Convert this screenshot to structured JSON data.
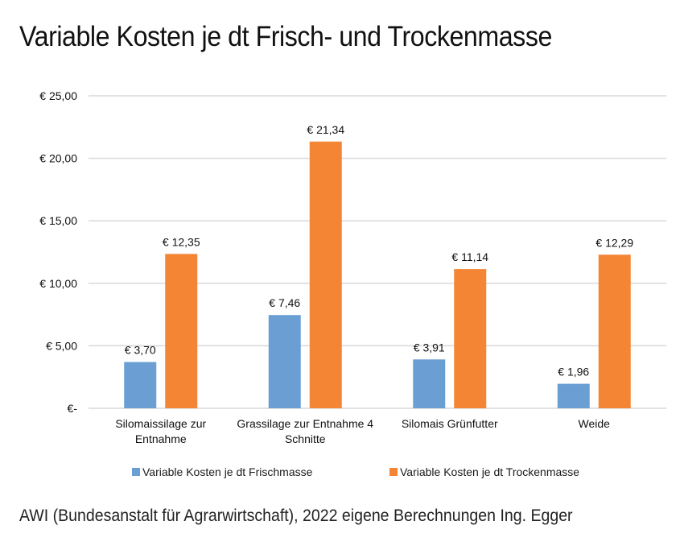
{
  "chart_data": {
    "type": "bar",
    "title": "Variable Kosten je dt Frisch- und Trockenmasse",
    "xlabel": "",
    "ylabel": "",
    "ylim": [
      0,
      25
    ],
    "grid": true,
    "legend_position": "bottom",
    "yticks": [
      0,
      5,
      10,
      15,
      20,
      25
    ],
    "ytick_labels": [
      "€-",
      "€ 5,00",
      "€ 10,00",
      "€ 15,00",
      "€ 20,00",
      "€ 25,00"
    ],
    "categories": [
      [
        "Silomaissilage zur",
        "Entnahme"
      ],
      [
        "Grassilage zur Entnahme  4",
        "Schnitte"
      ],
      [
        "Silomais Grünfutter"
      ],
      [
        "Weide"
      ]
    ],
    "series": [
      {
        "name": "Variable Kosten je dt Frischmasse",
        "color": "#6b9fd4",
        "values": [
          3.7,
          7.46,
          3.91,
          1.96
        ],
        "labels": [
          "€ 3,70",
          "€ 7,46",
          "€ 3,91",
          "€ 1,96"
        ]
      },
      {
        "name": "Variable Kosten je dt Trockenmasse",
        "color": "#f48534",
        "values": [
          12.35,
          21.34,
          11.14,
          12.29
        ],
        "labels": [
          "€ 12,35",
          "€ 21,34",
          "€ 11,14",
          "€ 12,29"
        ]
      }
    ]
  },
  "source": "AWI (Bundesanstalt für Agrarwirtschaft), 2022 eigene Berechnungen Ing. Egger"
}
